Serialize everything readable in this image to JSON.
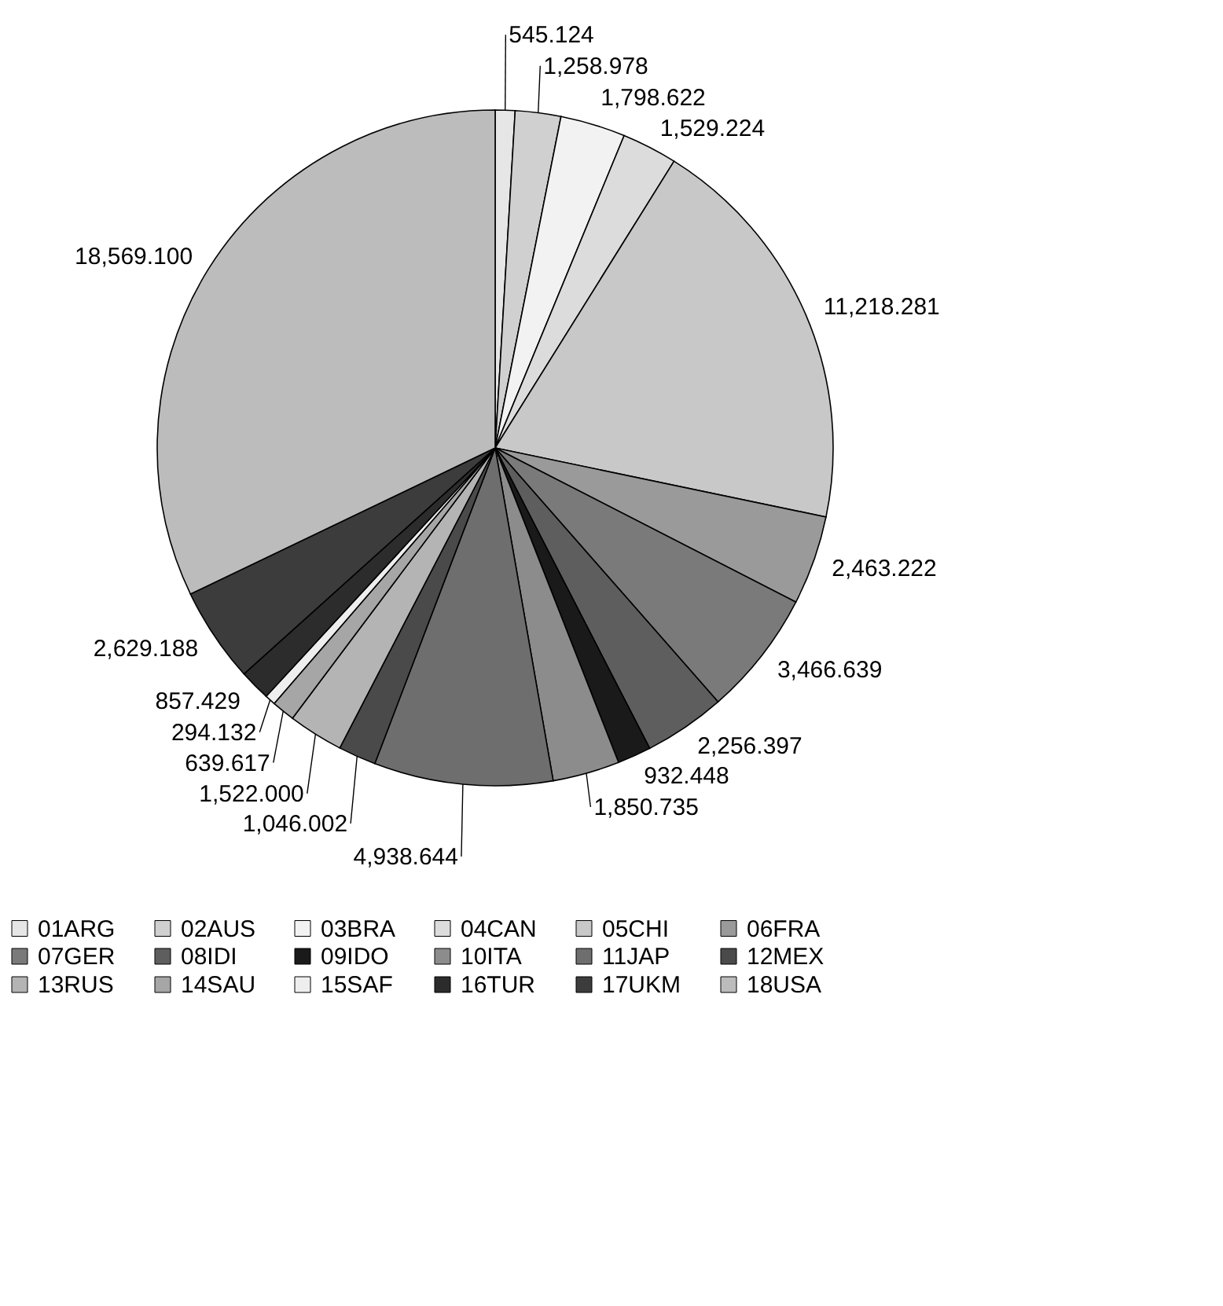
{
  "chart_data": {
    "type": "pie",
    "categories": [
      "01ARG",
      "02AUS",
      "03BRA",
      "04CAN",
      "05CHI",
      "06FRA",
      "07GER",
      "08IDI",
      "09IDO",
      "10ITA",
      "11JAP",
      "12MEX",
      "13RUS",
      "14SAU",
      "15SAF",
      "16TUR",
      "17UKM",
      "18USA"
    ],
    "values": [
      545.124,
      1258.978,
      1798.622,
      1529.224,
      11218.281,
      2463.222,
      3466.639,
      2256.397,
      932.448,
      1850.735,
      4938.644,
      1046.002,
      1522.0,
      639.617,
      294.132,
      857.429,
      2629.188,
      18569.1
    ],
    "colors": [
      "#e6e6e6",
      "#d0d0d0",
      "#f2f2f2",
      "#dcdcdc",
      "#c8c8c8",
      "#9a9a9a",
      "#7a7a7a",
      "#5e5e5e",
      "#1a1a1a",
      "#8c8c8c",
      "#6e6e6e",
      "#4a4a4a",
      "#b4b4b4",
      "#a6a6a6",
      "#eeeeee",
      "#2c2c2c",
      "#3c3c3c",
      "#bcbcbc"
    ],
    "value_labels": [
      "545.124",
      "1,258.978",
      "1,798.622",
      "1,529.224",
      "11,218.281",
      "2,463.222",
      "3,466.639",
      "2,256.397",
      "932.448",
      "1,850.735",
      "4,938.644",
      "1,046.002",
      "1,522.000",
      "639.617",
      "294.132",
      "857.429",
      "2,629.188",
      "18,569.100"
    ],
    "legend": "bottom"
  }
}
